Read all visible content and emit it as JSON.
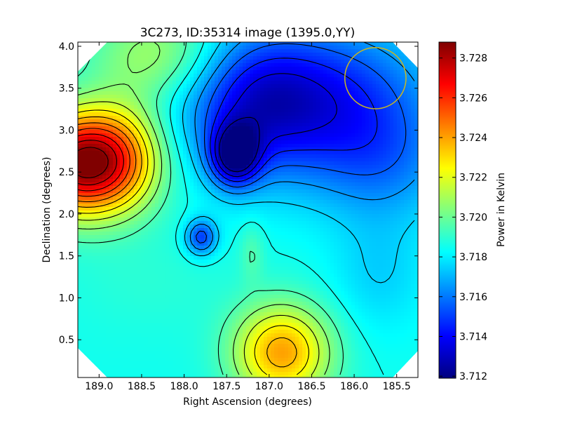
{
  "chart_data": {
    "type": "heatmap",
    "title": "3C273, ID:35314 image (1395.0,YY)",
    "xlabel": "Right Ascension (degrees)",
    "ylabel": "Declination (degrees)",
    "xlim": [
      189.25,
      185.25
    ],
    "ylim": [
      0.05,
      4.05
    ],
    "x_axis_inverted": true,
    "x_ticks": [
      189.0,
      188.5,
      188.0,
      187.5,
      187.0,
      186.5,
      186.0,
      185.5
    ],
    "x_tick_labels": [
      "189.0",
      "188.5",
      "188.0",
      "187.5",
      "187.0",
      "186.5",
      "186.0",
      "185.5"
    ],
    "y_ticks": [
      0.5,
      1.0,
      1.5,
      2.0,
      2.5,
      3.0,
      3.5,
      4.0
    ],
    "y_tick_labels": [
      "0.5",
      "1.0",
      "1.5",
      "2.0",
      "2.5",
      "3.0",
      "3.5",
      "4.0"
    ],
    "colormap": "jet",
    "contours": true,
    "colorbar": {
      "label": "Power in Kelvin",
      "range": [
        3.7119,
        3.7288
      ],
      "ticks": [
        3.712,
        3.714,
        3.716,
        3.718,
        3.72,
        3.722,
        3.724,
        3.726,
        3.728
      ],
      "tick_labels": [
        "3.712",
        "3.714",
        "3.716",
        "3.718",
        "3.720",
        "3.722",
        "3.724",
        "3.726",
        "3.728"
      ]
    },
    "features": [
      {
        "kind": "maximum",
        "ra": 189.2,
        "dec": 2.6,
        "value": 3.7285
      },
      {
        "kind": "minimum",
        "ra": 187.4,
        "dec": 2.7,
        "value": 3.7122
      },
      {
        "kind": "secondary-maximum",
        "ra": 186.85,
        "dec": 0.35,
        "value": 3.7245
      },
      {
        "kind": "local-minimum",
        "ra": 187.8,
        "dec": 1.72,
        "value": 3.7155
      }
    ],
    "beam_circle": {
      "ra": 185.75,
      "dec": 3.62,
      "radius_deg": 0.36,
      "color": "#c8b820"
    }
  }
}
